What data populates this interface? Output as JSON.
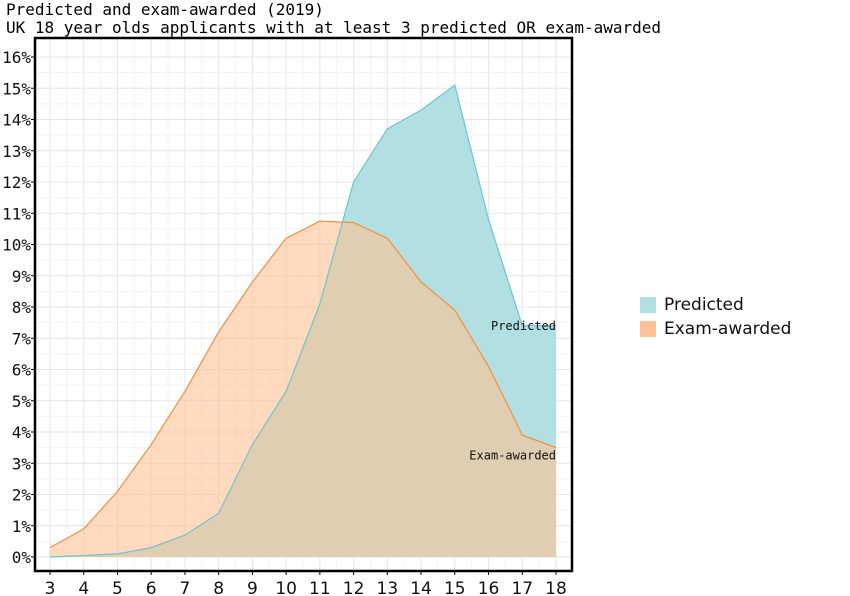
{
  "chart_data": {
    "type": "area",
    "title": "Predicted and exam-awarded (2019)",
    "subtitle": "UK 18 year olds applicants with at least 3 predicted OR exam-awarded",
    "x": [
      3,
      4,
      5,
      6,
      7,
      8,
      9,
      10,
      11,
      12,
      13,
      14,
      15,
      16,
      17,
      18
    ],
    "xlim": [
      3,
      18
    ],
    "ylim": [
      0,
      16
    ],
    "y_ticks": [
      "0%",
      "1%",
      "2%",
      "3%",
      "4%",
      "5%",
      "6%",
      "7%",
      "8%",
      "9%",
      "10%",
      "11%",
      "12%",
      "13%",
      "14%",
      "15%",
      "16%"
    ],
    "grid": true,
    "legend_position": "right",
    "series": [
      {
        "name": "Predicted",
        "color": "#b2e0e2",
        "line_color": "#6ec5ca",
        "values": [
          0.0,
          0.05,
          0.1,
          0.3,
          0.7,
          1.4,
          3.6,
          5.3,
          8.1,
          12.0,
          13.7,
          14.3,
          15.1,
          10.8,
          7.4,
          7.4
        ],
        "end_label": "Predicted"
      },
      {
        "name": "Exam-awarded",
        "color": "#ffc195",
        "line_color": "#f0913c",
        "values": [
          0.3,
          0.9,
          2.1,
          3.6,
          5.3,
          7.2,
          8.8,
          10.2,
          10.75,
          10.7,
          10.2,
          8.8,
          7.9,
          6.1,
          3.9,
          3.5
        ],
        "end_label": "Exam-awarded"
      }
    ]
  }
}
